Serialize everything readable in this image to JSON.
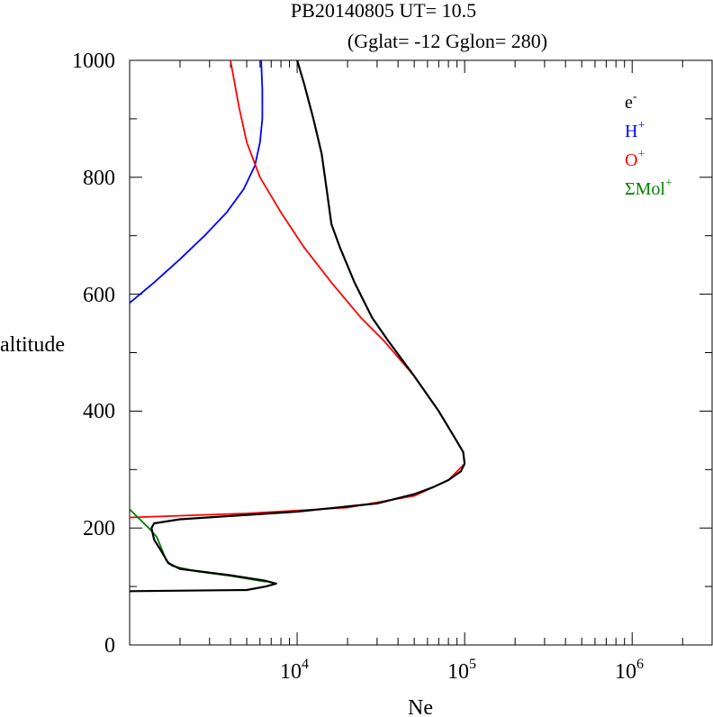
{
  "title": {
    "line1": "PB20140805   UT=  10.5",
    "line2": "(Gglat= -12   Gglon=  280)"
  },
  "axes": {
    "xlabel": "Ne",
    "ylabel": "altitude",
    "y_ticks": [
      "0",
      "200",
      "400",
      "600",
      "800",
      "1000"
    ],
    "x_ticks": [
      {
        "base": "10",
        "exp": "4",
        "value": 10000
      },
      {
        "base": "10",
        "exp": "5",
        "value": 100000
      },
      {
        "base": "10",
        "exp": "6",
        "value": 1000000
      }
    ]
  },
  "legend": [
    {
      "base": "e",
      "sup": "-",
      "color": "#000000"
    },
    {
      "base": "H",
      "sup": "+",
      "color": "#0000ff"
    },
    {
      "base": "O",
      "sup": "+",
      "color": "#ff0000"
    },
    {
      "base": "ΣMol",
      "sup": "+",
      "color": "#008000"
    }
  ],
  "chart_data": {
    "type": "line",
    "x_scale": "log",
    "xlim": [
      1000,
      3000000
    ],
    "ylim": [
      0,
      1000
    ],
    "xlabel": "Ne",
    "ylabel": "altitude",
    "legend_position": "top-right",
    "grid": false,
    "series": [
      {
        "name": "e-",
        "color": "#000000",
        "points": [
          [
            1000,
            92
          ],
          [
            5000,
            94
          ],
          [
            6500,
            100
          ],
          [
            7500,
            105
          ],
          [
            6400,
            110
          ],
          [
            3800,
            120
          ],
          [
            2000,
            130
          ],
          [
            1700,
            140
          ],
          [
            1550,
            160
          ],
          [
            1400,
            180
          ],
          [
            1350,
            200
          ],
          [
            1400,
            208
          ],
          [
            2000,
            215
          ],
          [
            10000,
            228
          ],
          [
            30000,
            242
          ],
          [
            50000,
            258
          ],
          [
            65000,
            270
          ],
          [
            80000,
            282
          ],
          [
            95000,
            297
          ],
          [
            100000,
            310
          ],
          [
            98000,
            330
          ],
          [
            85000,
            360
          ],
          [
            70000,
            400
          ],
          [
            50000,
            460
          ],
          [
            35000,
            520
          ],
          [
            28000,
            560
          ],
          [
            22000,
            620
          ],
          [
            18000,
            680
          ],
          [
            16000,
            720
          ],
          [
            15000,
            780
          ],
          [
            14000,
            840
          ],
          [
            12500,
            900
          ],
          [
            11000,
            960
          ],
          [
            10000,
            1000
          ]
        ]
      },
      {
        "name": "H+",
        "color": "#0000ff",
        "points": [
          [
            1000,
            585
          ],
          [
            1400,
            620
          ],
          [
            2000,
            660
          ],
          [
            2800,
            700
          ],
          [
            3800,
            740
          ],
          [
            4800,
            780
          ],
          [
            5600,
            820
          ],
          [
            6000,
            860
          ],
          [
            6200,
            900
          ],
          [
            6200,
            950
          ],
          [
            6100,
            1000
          ]
        ]
      },
      {
        "name": "O+",
        "color": "#ff0000",
        "points": [
          [
            1000,
            218
          ],
          [
            5000,
            225
          ],
          [
            20000,
            235
          ],
          [
            50000,
            255
          ],
          [
            80000,
            282
          ],
          [
            100000,
            310
          ],
          [
            98000,
            330
          ],
          [
            85000,
            360
          ],
          [
            70000,
            400
          ],
          [
            50000,
            460
          ],
          [
            33000,
            520
          ],
          [
            24000,
            560
          ],
          [
            16000,
            620
          ],
          [
            11000,
            680
          ],
          [
            8000,
            740
          ],
          [
            6000,
            800
          ],
          [
            5000,
            860
          ],
          [
            4500,
            920
          ],
          [
            4000,
            1000
          ]
        ]
      },
      {
        "name": "ΣMol+",
        "color": "#008000",
        "points": [
          [
            1000,
            232
          ],
          [
            1150,
            215
          ],
          [
            1300,
            200
          ],
          [
            1450,
            185
          ],
          [
            1550,
            165
          ],
          [
            1650,
            145
          ],
          [
            1800,
            135
          ],
          [
            2500,
            126
          ],
          [
            4000,
            118
          ],
          [
            6500,
            108
          ]
        ]
      }
    ]
  }
}
